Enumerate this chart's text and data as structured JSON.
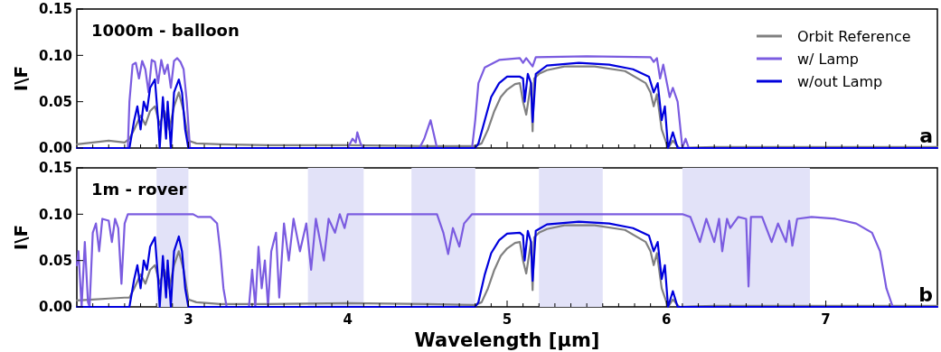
{
  "chart_data": [
    {
      "type": "line",
      "title": "1000m - balloon",
      "ylabel": "I\\F",
      "annotations": [
        "a"
      ],
      "legend": "top right",
      "tick_labels": "y",
      "xlim": [
        2.3,
        7.7
      ],
      "ylim": [
        0,
        0.15
      ],
      "xticks": [
        {
          "value": 2.4,
          "label": null
        },
        {
          "value": 2.5,
          "label": null
        },
        {
          "value": 2.6,
          "label": null
        },
        {
          "value": 2.7,
          "label": null
        },
        {
          "value": 2.8,
          "label": null
        },
        {
          "value": 2.9,
          "label": null
        },
        3,
        {
          "value": 3.1,
          "label": null
        },
        {
          "value": 3.2,
          "label": null
        },
        {
          "value": 3.3,
          "label": null
        },
        {
          "value": 3.4,
          "label": null
        },
        {
          "value": 3.5,
          "label": null
        },
        {
          "value": 3.6,
          "label": null
        },
        {
          "value": 3.7,
          "label": null
        },
        {
          "value": 3.8,
          "label": null
        },
        {
          "value": 3.9,
          "label": null
        },
        4,
        {
          "value": 4.1,
          "label": null
        },
        {
          "value": 4.2,
          "label": null
        },
        {
          "value": 4.3,
          "label": null
        },
        {
          "value": 4.4,
          "label": null
        },
        {
          "value": 4.5,
          "label": null
        },
        {
          "value": 4.6,
          "label": null
        },
        {
          "value": 4.7,
          "label": null
        },
        {
          "value": 4.8,
          "label": null
        },
        {
          "value": 4.9,
          "label": null
        },
        5,
        {
          "value": 5.1,
          "label": null
        },
        {
          "value": 5.2,
          "label": null
        },
        {
          "value": 5.3,
          "label": null
        },
        {
          "value": 5.4,
          "label": null
        },
        {
          "value": 5.5,
          "label": null
        },
        {
          "value": 5.6,
          "label": null
        },
        {
          "value": 5.7,
          "label": null
        },
        {
          "value": 5.8,
          "label": null
        },
        {
          "value": 5.9,
          "label": null
        },
        6,
        {
          "value": 6.1,
          "label": null
        },
        {
          "value": 6.2,
          "label": null
        },
        {
          "value": 6.3,
          "label": null
        },
        {
          "value": 6.4,
          "label": null
        },
        {
          "value": 6.5,
          "label": null
        },
        {
          "value": 6.6,
          "label": null
        },
        {
          "value": 6.7,
          "label": null
        },
        {
          "value": 6.8,
          "label": null
        },
        {
          "value": 6.9,
          "label": null
        },
        7,
        {
          "value": 7.1,
          "label": null
        },
        {
          "value": 7.2,
          "label": null
        },
        {
          "value": 7.3,
          "label": null
        },
        {
          "value": 7.4,
          "label": null
        },
        {
          "value": 7.5,
          "label": null
        },
        {
          "value": 7.6,
          "label": null
        }
      ],
      "yticks": [
        {
          "value": 0,
          "label": "0.00"
        },
        {
          "value": 0.05,
          "label": "0.05"
        },
        {
          "value": 0.1,
          "label": "0.10"
        },
        {
          "value": 0.15,
          "label": "0.15"
        }
      ],
      "series": [
        {
          "name": "Orbit Reference",
          "color": "#808080",
          "x": [
            2.3,
            2.4,
            2.5,
            2.6,
            2.63,
            2.66,
            2.7,
            2.73,
            2.76,
            2.79,
            2.82,
            2.85,
            2.88,
            2.91,
            2.94,
            2.97,
            3.0,
            3.05,
            3.2,
            3.5,
            4.0,
            4.5,
            4.8,
            4.84,
            4.88,
            4.92,
            4.96,
            5.0,
            5.05,
            5.08,
            5.1,
            5.12,
            5.15,
            5.16,
            5.17,
            5.2,
            5.25,
            5.36,
            5.55,
            5.74,
            5.87,
            5.9,
            5.92,
            5.94,
            5.97,
            6.01,
            6.04,
            6.08,
            6.3,
            7.0,
            7.7
          ],
          "values": [
            0.004,
            0.006,
            0.008,
            0.006,
            0.01,
            0.02,
            0.035,
            0.025,
            0.04,
            0.045,
            0.025,
            0.04,
            0.02,
            0.045,
            0.06,
            0.04,
            0.008,
            0.005,
            0.004,
            0.003,
            0.003,
            0.002,
            0.002,
            0.005,
            0.02,
            0.04,
            0.055,
            0.063,
            0.069,
            0.07,
            0.05,
            0.036,
            0.07,
            0.018,
            0.075,
            0.08,
            0.084,
            0.088,
            0.088,
            0.083,
            0.07,
            0.06,
            0.045,
            0.058,
            0.02,
            0.0,
            0.008,
            0.0,
            0.001,
            0.001,
            0.001
          ]
        },
        {
          "name": "w/ Lamp",
          "color": "#7b5ce0",
          "x": [
            2.3,
            2.62,
            2.63,
            2.65,
            2.67,
            2.69,
            2.71,
            2.73,
            2.75,
            2.77,
            2.79,
            2.81,
            2.83,
            2.85,
            2.87,
            2.89,
            2.91,
            2.93,
            2.95,
            2.97,
            2.99,
            3.01,
            3.5,
            4.0,
            4.03,
            4.05,
            4.06,
            4.08,
            4.1,
            4.45,
            4.48,
            4.5,
            4.52,
            4.54,
            4.56,
            4.78,
            4.8,
            4.82,
            4.86,
            4.95,
            5.08,
            5.1,
            5.12,
            5.16,
            5.18,
            5.5,
            5.9,
            5.92,
            5.94,
            5.96,
            5.98,
            6.02,
            6.04,
            6.07,
            6.1,
            6.12,
            6.14,
            7.7
          ],
          "values": [
            0,
            0,
            0.05,
            0.09,
            0.092,
            0.075,
            0.094,
            0.085,
            0.06,
            0.095,
            0.093,
            0.07,
            0.095,
            0.08,
            0.09,
            0.065,
            0.094,
            0.097,
            0.093,
            0.085,
            0.05,
            0.0,
            0.0,
            0.0,
            0.01,
            0.006,
            0.017,
            0.005,
            0.0,
            0.0,
            0.01,
            0.02,
            0.03,
            0.015,
            0.0,
            0.0,
            0.03,
            0.07,
            0.087,
            0.095,
            0.097,
            0.092,
            0.097,
            0.088,
            0.098,
            0.099,
            0.098,
            0.093,
            0.097,
            0.075,
            0.09,
            0.055,
            0.065,
            0.05,
            0.0,
            0.01,
            0.0,
            0.0
          ]
        },
        {
          "name": "w/out Lamp",
          "color": "#0000dd",
          "x": [
            2.3,
            2.63,
            2.66,
            2.68,
            2.7,
            2.72,
            2.74,
            2.76,
            2.79,
            2.81,
            2.82,
            2.84,
            2.86,
            2.87,
            2.89,
            2.91,
            2.94,
            2.96,
            2.98,
            3.0,
            4.8,
            4.82,
            4.86,
            4.9,
            4.95,
            5.0,
            5.08,
            5.1,
            5.11,
            5.13,
            5.15,
            5.16,
            5.18,
            5.25,
            5.45,
            5.64,
            5.79,
            5.89,
            5.92,
            5.945,
            5.97,
            5.99,
            6.01,
            6.04,
            6.07,
            6.1,
            7.7
          ],
          "values": [
            0,
            0,
            0.03,
            0.045,
            0.02,
            0.05,
            0.04,
            0.065,
            0.074,
            0.03,
            0.0,
            0.055,
            0.01,
            0.05,
            0.0,
            0.06,
            0.074,
            0.06,
            0.02,
            0.0,
            0,
            0.005,
            0.03,
            0.055,
            0.07,
            0.077,
            0.077,
            0.075,
            0.05,
            0.08,
            0.07,
            0.028,
            0.08,
            0.089,
            0.092,
            0.09,
            0.085,
            0.077,
            0.06,
            0.07,
            0.03,
            0.045,
            0.0,
            0.017,
            0.0,
            0.0,
            0.0
          ]
        }
      ]
    },
    {
      "type": "line",
      "title": "1m - rover",
      "ylabel": "I\\F",
      "xlabel": "Wavelength [μm]",
      "annotations": [
        "b"
      ],
      "xlim": [
        2.3,
        7.7
      ],
      "ylim": [
        0,
        0.15
      ],
      "xticks": [
        {
          "value": 2.4,
          "label": null
        },
        {
          "value": 2.5,
          "label": null
        },
        {
          "value": 2.6,
          "label": null
        },
        {
          "value": 2.7,
          "label": null
        },
        {
          "value": 2.8,
          "label": null
        },
        {
          "value": 2.9,
          "label": null
        },
        3,
        {
          "value": 3.1,
          "label": null
        },
        {
          "value": 3.2,
          "label": null
        },
        {
          "value": 3.3,
          "label": null
        },
        {
          "value": 3.4,
          "label": null
        },
        {
          "value": 3.5,
          "label": null
        },
        {
          "value": 3.6,
          "label": null
        },
        {
          "value": 3.7,
          "label": null
        },
        {
          "value": 3.8,
          "label": null
        },
        {
          "value": 3.9,
          "label": null
        },
        4,
        {
          "value": 4.1,
          "label": null
        },
        {
          "value": 4.2,
          "label": null
        },
        {
          "value": 4.3,
          "label": null
        },
        {
          "value": 4.4,
          "label": null
        },
        {
          "value": 4.5,
          "label": null
        },
        {
          "value": 4.6,
          "label": null
        },
        {
          "value": 4.7,
          "label": null
        },
        {
          "value": 4.8,
          "label": null
        },
        {
          "value": 4.9,
          "label": null
        },
        5,
        {
          "value": 5.1,
          "label": null
        },
        {
          "value": 5.2,
          "label": null
        },
        {
          "value": 5.3,
          "label": null
        },
        {
          "value": 5.4,
          "label": null
        },
        {
          "value": 5.5,
          "label": null
        },
        {
          "value": 5.6,
          "label": null
        },
        {
          "value": 5.7,
          "label": null
        },
        {
          "value": 5.8,
          "label": null
        },
        {
          "value": 5.9,
          "label": null
        },
        6,
        {
          "value": 6.1,
          "label": null
        },
        {
          "value": 6.2,
          "label": null
        },
        {
          "value": 6.3,
          "label": null
        },
        {
          "value": 6.4,
          "label": null
        },
        {
          "value": 6.5,
          "label": null
        },
        {
          "value": 6.6,
          "label": null
        },
        {
          "value": 6.7,
          "label": null
        },
        {
          "value": 6.8,
          "label": null
        },
        {
          "value": 6.9,
          "label": null
        },
        7,
        {
          "value": 7.1,
          "label": null
        },
        {
          "value": 7.2,
          "label": null
        },
        {
          "value": 7.3,
          "label": null
        },
        {
          "value": 7.4,
          "label": null
        },
        {
          "value": 7.5,
          "label": null
        },
        {
          "value": 7.6,
          "label": null
        }
      ],
      "yticks": [
        {
          "value": 0,
          "label": "0.00"
        },
        {
          "value": 0.05,
          "label": "0.05"
        },
        {
          "value": 0.1,
          "label": "0.10"
        },
        {
          "value": 0.15,
          "label": "0.15"
        }
      ],
      "bands": [
        {
          "axis": "x",
          "from": 2.8,
          "to": 3.0,
          "color": "#e2e2f8"
        },
        {
          "axis": "x",
          "from": 3.75,
          "to": 4.1,
          "color": "#e2e2f8"
        },
        {
          "axis": "x",
          "from": 4.4,
          "to": 4.8,
          "color": "#e2e2f8"
        },
        {
          "axis": "x",
          "from": 5.2,
          "to": 5.6,
          "color": "#e2e2f8"
        },
        {
          "axis": "x",
          "from": 6.1,
          "to": 6.9,
          "color": "#e2e2f8"
        }
      ],
      "series": [
        {
          "color": "#808080",
          "x": [
            2.3,
            2.4,
            2.5,
            2.6,
            2.63,
            2.66,
            2.7,
            2.73,
            2.76,
            2.79,
            2.82,
            2.85,
            2.88,
            2.91,
            2.94,
            2.97,
            3.0,
            3.05,
            3.2,
            3.5,
            4.0,
            4.5,
            4.8,
            4.84,
            4.88,
            4.92,
            4.96,
            5.0,
            5.05,
            5.08,
            5.1,
            5.12,
            5.15,
            5.16,
            5.17,
            5.2,
            5.25,
            5.36,
            5.55,
            5.74,
            5.87,
            5.9,
            5.92,
            5.94,
            5.97,
            6.01,
            6.04,
            6.08,
            6.3,
            7.0,
            7.7
          ],
          "values": [
            0.007,
            0.008,
            0.009,
            0.01,
            0.01,
            0.02,
            0.035,
            0.025,
            0.04,
            0.045,
            0.025,
            0.04,
            0.02,
            0.045,
            0.06,
            0.04,
            0.008,
            0.005,
            0.003,
            0.003,
            0.004,
            0.003,
            0.002,
            0.005,
            0.02,
            0.04,
            0.055,
            0.063,
            0.069,
            0.07,
            0.05,
            0.036,
            0.07,
            0.018,
            0.075,
            0.08,
            0.084,
            0.088,
            0.088,
            0.083,
            0.07,
            0.06,
            0.045,
            0.058,
            0.02,
            0.0,
            0.008,
            0.0,
            0.001,
            0.001,
            0.001
          ]
        },
        {
          "color": "#7b5ce0",
          "x": [
            2.3,
            2.31,
            2.33,
            2.35,
            2.37,
            2.38,
            2.4,
            2.42,
            2.44,
            2.46,
            2.5,
            2.52,
            2.54,
            2.56,
            2.58,
            2.6,
            2.62,
            3.03,
            3.06,
            3.14,
            3.18,
            3.2,
            3.22,
            3.24,
            3.38,
            3.4,
            3.42,
            3.44,
            3.46,
            3.48,
            3.5,
            3.52,
            3.55,
            3.57,
            3.6,
            3.63,
            3.66,
            3.7,
            3.74,
            3.77,
            3.8,
            3.85,
            3.88,
            3.92,
            3.95,
            3.98,
            4.0,
            4.56,
            4.6,
            4.63,
            4.66,
            4.7,
            4.73,
            4.78,
            6.1,
            6.15,
            6.21,
            6.25,
            6.3,
            6.33,
            6.35,
            6.38,
            6.4,
            6.45,
            6.5,
            6.515,
            6.53,
            6.6,
            6.66,
            6.7,
            6.75,
            6.77,
            6.79,
            6.82,
            6.91,
            7.06,
            7.19,
            7.29,
            7.34,
            7.38,
            7.42,
            7.7
          ],
          "values": [
            0.045,
            0.06,
            0.0,
            0.07,
            0.005,
            0.0,
            0.08,
            0.09,
            0.06,
            0.095,
            0.093,
            0.07,
            0.095,
            0.085,
            0.025,
            0.09,
            0.1,
            0.1,
            0.097,
            0.097,
            0.09,
            0.06,
            0.02,
            0.0,
            0.0,
            0.04,
            0.0,
            0.065,
            0.02,
            0.05,
            0.0,
            0.06,
            0.08,
            0.01,
            0.09,
            0.05,
            0.095,
            0.06,
            0.09,
            0.04,
            0.095,
            0.05,
            0.095,
            0.08,
            0.1,
            0.085,
            0.1,
            0.1,
            0.08,
            0.057,
            0.085,
            0.065,
            0.09,
            0.1,
            0.1,
            0.097,
            0.07,
            0.095,
            0.07,
            0.095,
            0.06,
            0.095,
            0.085,
            0.097,
            0.095,
            0.022,
            0.097,
            0.097,
            0.07,
            0.09,
            0.07,
            0.093,
            0.066,
            0.095,
            0.097,
            0.095,
            0.09,
            0.08,
            0.06,
            0.02,
            0.0,
            0.0
          ]
        },
        {
          "color": "#0000dd",
          "x": [
            2.3,
            2.63,
            2.66,
            2.68,
            2.7,
            2.72,
            2.74,
            2.76,
            2.79,
            2.81,
            2.82,
            2.84,
            2.86,
            2.87,
            2.89,
            2.91,
            2.94,
            2.96,
            2.98,
            3.0,
            4.8,
            4.82,
            4.86,
            4.9,
            4.95,
            5.0,
            5.08,
            5.1,
            5.11,
            5.13,
            5.15,
            5.16,
            5.18,
            5.25,
            5.45,
            5.64,
            5.79,
            5.89,
            5.92,
            5.945,
            5.97,
            5.99,
            6.01,
            6.04,
            6.07,
            6.1,
            7.7
          ],
          "values": [
            0,
            0,
            0.03,
            0.045,
            0.02,
            0.05,
            0.04,
            0.065,
            0.075,
            0.03,
            0.0,
            0.055,
            0.01,
            0.05,
            0.0,
            0.06,
            0.076,
            0.06,
            0.02,
            0.0,
            0,
            0.005,
            0.035,
            0.058,
            0.072,
            0.079,
            0.08,
            0.077,
            0.05,
            0.082,
            0.07,
            0.028,
            0.082,
            0.089,
            0.092,
            0.09,
            0.085,
            0.077,
            0.06,
            0.07,
            0.03,
            0.045,
            0.0,
            0.017,
            0.0,
            0.0,
            0.0
          ]
        }
      ]
    }
  ]
}
